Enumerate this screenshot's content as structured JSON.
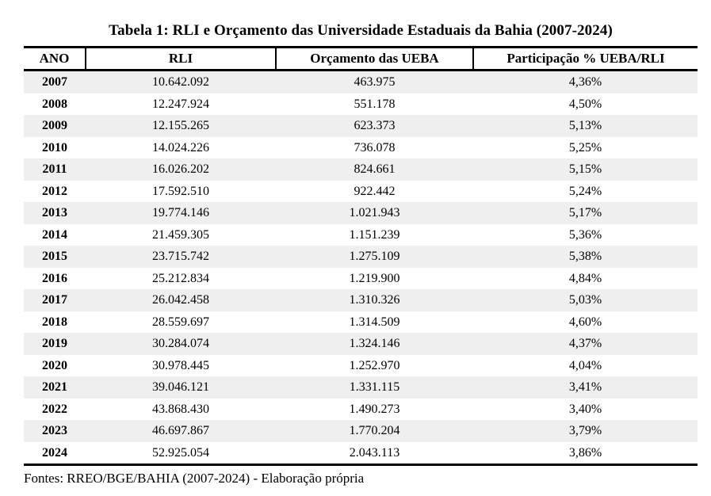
{
  "title": "Tabela 1: RLI e Orçamento das Universidade Estaduais da Bahia (2007-2024)",
  "footer": "Fontes: RREO/BGE/BAHIA (2007-2024) - Elaboração própria",
  "colors": {
    "stripe": "#efefef",
    "border": "#000000",
    "text": "#000000",
    "background": "#ffffff"
  },
  "table": {
    "columns": [
      "ANO",
      "RLI",
      "Orçamento das UEBA",
      "Participação % UEBA/RLI"
    ],
    "column_keys": [
      "year-cell",
      "rli-cell",
      "orcamento-ueba-cell",
      "participacao-cell"
    ],
    "rows": [
      [
        "2007",
        "10.642.092",
        "463.975",
        "4,36%"
      ],
      [
        "2008",
        "12.247.924",
        "551.178",
        "4,50%"
      ],
      [
        "2009",
        "12.155.265",
        "623.373",
        "5,13%"
      ],
      [
        "2010",
        "14.024.226",
        "736.078",
        "5,25%"
      ],
      [
        "2011",
        "16.026.202",
        "824.661",
        "5,15%"
      ],
      [
        "2012",
        "17.592.510",
        "922.442",
        "5,24%"
      ],
      [
        "2013",
        "19.774.146",
        "1.021.943",
        "5,17%"
      ],
      [
        "2014",
        "21.459.305",
        "1.151.239",
        "5,36%"
      ],
      [
        "2015",
        "23.715.742",
        "1.275.109",
        "5,38%"
      ],
      [
        "2016",
        "25.212.834",
        "1.219.900",
        "4,84%"
      ],
      [
        "2017",
        "26.042.458",
        "1.310.326",
        "5,03%"
      ],
      [
        "2018",
        "28.559.697",
        "1.314.509",
        "4,60%"
      ],
      [
        "2019",
        "30.284.074",
        "1.324.146",
        "4,37%"
      ],
      [
        "2020",
        "30.978.445",
        "1.252.970",
        "4,04%"
      ],
      [
        "2021",
        "39.046.121",
        "1.331.115",
        "3,41%"
      ],
      [
        "2022",
        "43.868.430",
        "1.490.273",
        "3,40%"
      ],
      [
        "2023",
        "46.697.867",
        "1.770.204",
        "3,79%"
      ],
      [
        "2024",
        "52.925.054",
        "2.043.113",
        "3,86%"
      ]
    ]
  }
}
